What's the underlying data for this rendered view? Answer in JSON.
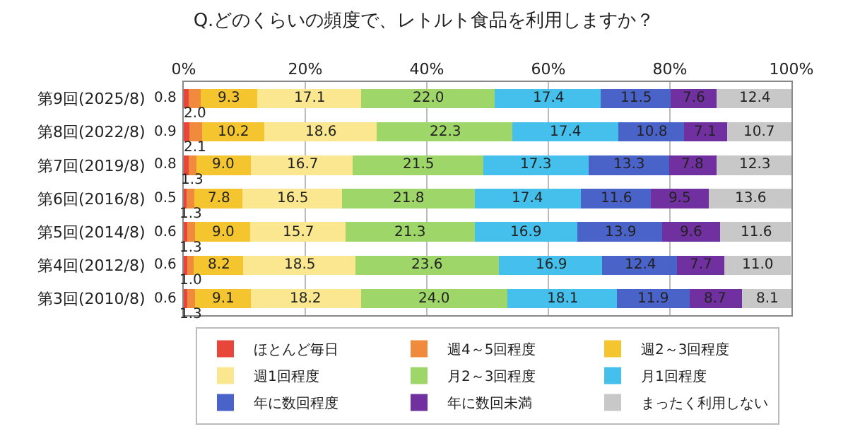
{
  "chart_data": {
    "type": "bar",
    "orientation": "horizontal",
    "stacked": true,
    "grid": "x",
    "legend": "bottom",
    "title": "Q.どのくらいの頻度で、レトルト食品を利用しますか？",
    "categories": [
      "第9回(2025/8)",
      "第8回(2022/8)",
      "第7回(2019/8)",
      "第6回(2016/8)",
      "第5回(2014/8)",
      "第4回(2012/8)",
      "第3回(2010/8)"
    ],
    "xlim": [
      0,
      100
    ],
    "xticks": [
      {
        "value": 0,
        "label": "0%"
      },
      {
        "value": 20,
        "label": "20%"
      },
      {
        "value": 40,
        "label": "40%"
      },
      {
        "value": 60,
        "label": "60%"
      },
      {
        "value": 80,
        "label": "80%"
      },
      {
        "value": 100,
        "label": "100%"
      }
    ],
    "series": [
      {
        "name": "ほとんど毎日",
        "color": "#e8463a",
        "values": [
          0.8,
          0.9,
          0.8,
          0.5,
          0.6,
          0.6,
          0.6
        ],
        "value_labels": [
          "0.8",
          "0.9",
          "0.8",
          "0.5",
          "0.6",
          "0.6",
          "0.6"
        ]
      },
      {
        "name": "週4～5回程度",
        "color": "#f08a3c",
        "values": [
          2.0,
          2.1,
          1.3,
          1.3,
          1.3,
          1.0,
          1.3
        ],
        "value_labels": [
          "2.0",
          "2.1",
          "1.3",
          "1.3",
          "1.3",
          "1.0",
          "1.3"
        ]
      },
      {
        "name": "週2～3回程度",
        "color": "#f5c530",
        "values": [
          9.3,
          10.2,
          9.0,
          7.8,
          9.0,
          8.2,
          9.1
        ],
        "value_labels": [
          "9.3",
          "10.2",
          "9.0",
          "7.8",
          "9.0",
          "8.2",
          "9.1"
        ]
      },
      {
        "name": "週1回程度",
        "color": "#fbe78f",
        "values": [
          17.1,
          18.6,
          16.7,
          16.5,
          15.7,
          18.5,
          18.2
        ],
        "value_labels": [
          "17.1",
          "18.6",
          "16.7",
          "16.5",
          "15.7",
          "18.5",
          "18.2"
        ]
      },
      {
        "name": "月2～3回程度",
        "color": "#9fd66a",
        "values": [
          22.0,
          22.3,
          21.5,
          21.8,
          21.3,
          23.6,
          24.0
        ],
        "value_labels": [
          "22.0",
          "22.3",
          "21.5",
          "21.8",
          "21.3",
          "23.6",
          "24.0"
        ]
      },
      {
        "name": "月1回程度",
        "color": "#45c0ec",
        "values": [
          17.4,
          17.4,
          17.3,
          17.4,
          16.9,
          16.9,
          18.1
        ],
        "value_labels": [
          "17.4",
          "17.4",
          "17.3",
          "17.4",
          "16.9",
          "16.9",
          "18.1"
        ]
      },
      {
        "name": "年に数回程度",
        "color": "#4a63c8",
        "values": [
          11.5,
          10.8,
          13.3,
          11.6,
          13.9,
          12.4,
          11.9
        ],
        "value_labels": [
          "11.5",
          "10.8",
          "13.3",
          "11.6",
          "13.9",
          "12.4",
          "11.9"
        ]
      },
      {
        "name": "年に数回未満",
        "color": "#7030a0",
        "values": [
          7.6,
          7.1,
          7.8,
          9.5,
          9.6,
          7.7,
          8.7
        ],
        "value_labels": [
          "7.6",
          "7.1",
          "7.8",
          "9.5",
          "9.6",
          "7.7",
          "8.7"
        ]
      },
      {
        "name": "まったく利用しない",
        "color": "#c8c8c8",
        "values": [
          12.4,
          10.7,
          12.3,
          13.6,
          11.6,
          11.0,
          8.1
        ],
        "value_labels": [
          "12.4",
          "10.7",
          "12.3",
          "13.6",
          "11.6",
          "11.0",
          "8.1"
        ]
      }
    ]
  }
}
